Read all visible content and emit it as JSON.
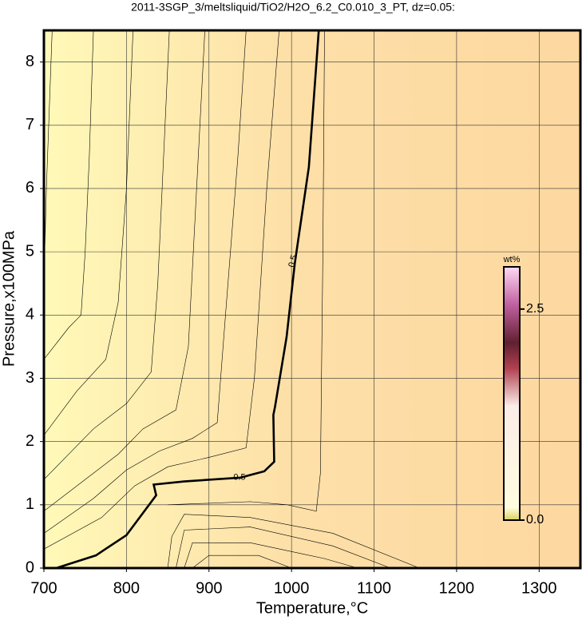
{
  "chart_data": {
    "type": "contour",
    "title": "2011-3SGP_3/meltsliquid/TiO2/H2O_6.2_C0.010_3_PT, dz=0.05:",
    "x_label": "Temperature,°C",
    "y_label": "Pressure,x100MPa",
    "xlim": [
      700,
      1350
    ],
    "ylim": [
      0,
      8.5
    ],
    "xticks": [
      700,
      800,
      900,
      1000,
      1100,
      1200,
      1300
    ],
    "yticks": [
      0,
      1,
      2,
      3,
      4,
      5,
      6,
      7,
      8
    ],
    "grid": true,
    "contours": [
      {
        "level": 0.5,
        "bold": true,
        "x": [
          715,
          763,
          800,
          836,
          833,
          870,
          938,
          967,
          979,
          978,
          980,
          994,
          1004,
          1021,
          1033
        ],
        "y": [
          0,
          0.2,
          0.52,
          1.15,
          1.32,
          1.37,
          1.43,
          1.53,
          1.68,
          2.42,
          2.55,
          3.65,
          4.82,
          6.34,
          8.5
        ],
        "label_at": [
          [
            1002,
            4.85
          ],
          [
            937,
            1.43
          ]
        ]
      },
      {
        "x": [
          700,
          703,
          710
        ],
        "y": [
          4.5,
          6,
          8.5
        ]
      },
      {
        "x": [
          700,
          730,
          745,
          750,
          755,
          760
        ],
        "y": [
          3.3,
          3.8,
          4.0,
          5,
          6.5,
          8.5
        ]
      },
      {
        "x": [
          700,
          740,
          775,
          790,
          800,
          808
        ],
        "y": [
          2.1,
          2.8,
          3.3,
          4.2,
          6,
          8.5
        ]
      },
      {
        "x": [
          700,
          760,
          800,
          830,
          838,
          845,
          852
        ],
        "y": [
          1.4,
          2.2,
          2.6,
          3.1,
          4.5,
          6.5,
          8.5
        ]
      },
      {
        "x": [
          700,
          760,
          790,
          820,
          860,
          875,
          885,
          895
        ],
        "y": [
          0.9,
          1.5,
          1.8,
          2.2,
          2.5,
          3.5,
          6,
          8.5
        ]
      },
      {
        "x": [
          700,
          760,
          800,
          840,
          880,
          910,
          920,
          935,
          945
        ],
        "y": [
          0.55,
          1.1,
          1.55,
          1.85,
          2.05,
          2.3,
          4,
          6.5,
          8.5
        ]
      },
      {
        "x": [
          700,
          770,
          810,
          850,
          900,
          945,
          955,
          970,
          985
        ],
        "y": [
          0.3,
          0.8,
          1.3,
          1.6,
          1.75,
          1.9,
          3,
          6,
          8.5
        ]
      },
      {
        "x": [
          850,
          950,
          995,
          1030,
          1035,
          1038,
          1040
        ],
        "y": [
          1.0,
          1.05,
          1.0,
          0.9,
          1.5,
          5,
          8.5
        ]
      },
      {
        "x": [
          850,
          855,
          870,
          950,
          1050,
          1155
        ],
        "y": [
          0,
          0.5,
          0.85,
          0.8,
          0.55,
          0
        ]
      },
      {
        "x": [
          860,
          870,
          950,
          1050,
          1120
        ],
        "y": [
          0,
          0.6,
          0.65,
          0.35,
          0
        ]
      },
      {
        "x": [
          870,
          880,
          950,
          1040,
          1080
        ],
        "y": [
          0,
          0.4,
          0.4,
          0.15,
          0
        ]
      },
      {
        "x": [
          880,
          900,
          960,
          1000
        ],
        "y": [
          0,
          0.2,
          0.2,
          0
        ]
      }
    ],
    "colorbar": {
      "label": "wt%",
      "clim": [
        0,
        3
      ],
      "ticks": [
        {
          "value": 0,
          "label": "0.0"
        },
        {
          "value": 2.5,
          "label": "2.5"
        }
      ]
    }
  }
}
